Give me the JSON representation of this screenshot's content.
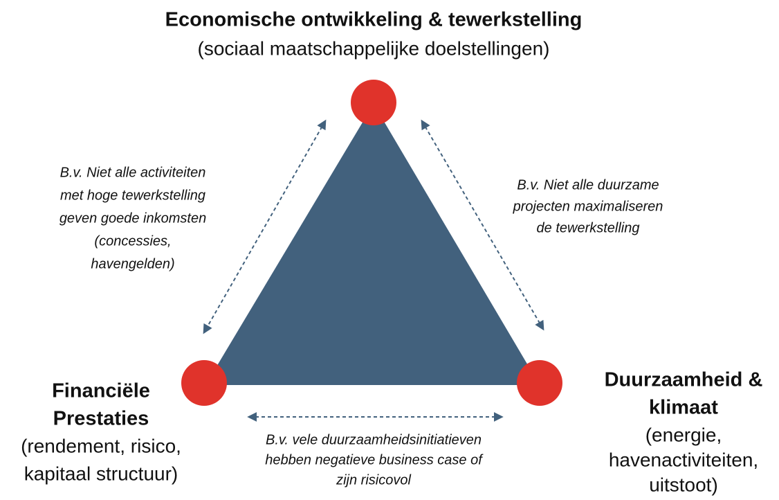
{
  "nodes": [
    {
      "title": [
        "Economische ontwikkeling & tewerkstelling"
      ],
      "subtitle": [
        "(sociaal maatschappelijke doelstellingen)"
      ]
    },
    {
      "title": [
        "Financiële",
        "Prestaties"
      ],
      "subtitle": [
        "(rendement, risico,",
        "kapitaal structuur)"
      ]
    },
    {
      "title": [
        "Duurzaamheid &",
        "klimaat"
      ],
      "subtitle": [
        "(energie,",
        "havenactiviteiten,",
        "uitstoot)"
      ]
    }
  ],
  "edges": [
    {
      "label": [
        "B.v. Niet alle activiteiten",
        "met hoge tewerkstelling",
        "geven goede inkomsten",
        "(concessies,",
        "havengelden)"
      ]
    },
    {
      "label": [
        "B.v. Niet alle duurzame",
        "projecten maximaliseren",
        "de tewerkstelling"
      ]
    },
    {
      "label": [
        "B.v. vele duurzaamheidsinitiatieven",
        "hebben negatieve business case of",
        "zijn risicovol"
      ]
    }
  ]
}
